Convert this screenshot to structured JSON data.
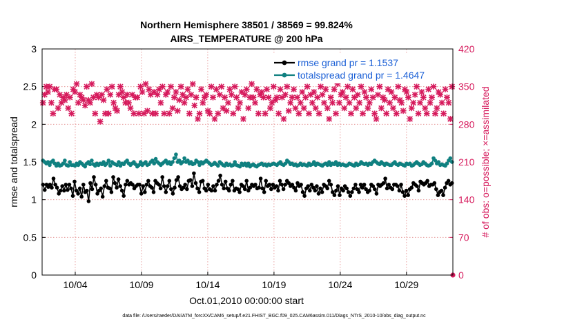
{
  "chart_data": {
    "type": "line",
    "title_line1": "Northern Hemisphere 38501 / 38569 = 99.824%",
    "title_line2": "AIRS_TEMPERATURE @ 200 hPa",
    "xlabel": "Oct.01,2010 00:00:00 start",
    "ylabel_left": "rmse and totalspread",
    "ylabel_right": "# of obs: o=possible; ×=assimilated",
    "footer": "data file: /Users/raeder/DAI/ATM_forcXX/CAM6_setup/f.e21.FHIST_BGC.f09_025.CAM6assim.011/Diags_NTrS_2010-10/obs_diag_output.nc",
    "x_range": [
      1.5,
      32.5
    ],
    "y_left": {
      "range": [
        0,
        3
      ],
      "ticks": [
        "0",
        "0.5",
        "1",
        "1.5",
        "2",
        "2.5",
        "3"
      ],
      "tick_values": [
        0,
        0.5,
        1,
        1.5,
        2,
        2.5,
        3
      ]
    },
    "y_right": {
      "range": [
        0,
        420
      ],
      "ticks": [
        "0",
        "70",
        "140",
        "210",
        "280",
        "350",
        "420"
      ],
      "tick_values": [
        0,
        70,
        140,
        210,
        280,
        350,
        420
      ]
    },
    "x_ticks": [
      {
        "x": 4,
        "label": "10/04"
      },
      {
        "x": 9,
        "label": "10/09"
      },
      {
        "x": 14,
        "label": "10/14"
      },
      {
        "x": 19,
        "label": "10/19"
      },
      {
        "x": 24,
        "label": "10/24"
      },
      {
        "x": 29,
        "label": "10/29"
      }
    ],
    "colors": {
      "rmse": "#000000",
      "spread": "#0f8080",
      "obs": "#d61a5c",
      "axis_right": "#d61a5c",
      "legend_text": "#1a5fd6",
      "grid": "#e38a8a"
    },
    "series": [
      {
        "name": "rmse grand pr = 1.1537",
        "key": "rmse",
        "axis": "left",
        "values": [
          1.2,
          1.13,
          1.2,
          1.17,
          1.2,
          1.16,
          1.28,
          1.2,
          1.16,
          1.08,
          1.12,
          1.18,
          1.12,
          1.2,
          1.13,
          1.2,
          1.15,
          1.05,
          1.24,
          1.12,
          1.08,
          1.15,
          1.04,
          1.2,
          1.1,
          1.12,
          0.98,
          1.22,
          1.14,
          1.3,
          1.2,
          1.08,
          1.12,
          1.15,
          1.04,
          1.18,
          1.25,
          1.16,
          1.15,
          1.1,
          1.3,
          1.22,
          1.16,
          1.27,
          1.18,
          1.12,
          1.05,
          1.2,
          1.25,
          1.2,
          1.22,
          1.2,
          1.15,
          1.18,
          1.2,
          1.2,
          1.08,
          1.18,
          1.1,
          1.2,
          1.25,
          1.18,
          1.16,
          1.1,
          1.25,
          1.22,
          1.2,
          1.15,
          1.3,
          1.18,
          1.1,
          1.18,
          1.25,
          1.14,
          1.08,
          1.16,
          1.26,
          1.3,
          1.18,
          1.14,
          1.16,
          1.2,
          1.14,
          1.25,
          1.26,
          1.18,
          1.35,
          1.22,
          1.15,
          1.1,
          1.24,
          1.25,
          1.15,
          1.12,
          1.2,
          1.14,
          1.12,
          1.18,
          1.12,
          1.2,
          1.25,
          1.32,
          1.2,
          1.15,
          1.24,
          1.15,
          1.12,
          1.2,
          1.25,
          1.12,
          1.15,
          1.14,
          1.1,
          1.2,
          1.18,
          1.14,
          1.25,
          1.12,
          1.16,
          1.2,
          1.18,
          1.2,
          1.15,
          1.16,
          1.28,
          1.15,
          1.1,
          1.25,
          1.18,
          1.2,
          1.14,
          1.2,
          1.16,
          1.18,
          1.12,
          1.25,
          1.2,
          1.14,
          1.2,
          1.25,
          1.22,
          1.18,
          1.2,
          1.16,
          1.12,
          1.22,
          1.18,
          1.2,
          1.1,
          1.05,
          1.15,
          1.18,
          1.12,
          1.2,
          1.16,
          1.12,
          1.18,
          1.08,
          1.15,
          1.1,
          1.2,
          1.18,
          1.15,
          1.25,
          1.2,
          1.1,
          1.06,
          1.12,
          1.18,
          1.06,
          1.15,
          1.12,
          1.18,
          1.15,
          1.1,
          1.05,
          1.1,
          1.15,
          1.2,
          1.14,
          1.1,
          1.2,
          1.16,
          1.2,
          1.14,
          1.1,
          1.12,
          1.2,
          1.18,
          1.14,
          1.08,
          1.2,
          1.18,
          1.2,
          1.22,
          1.28,
          1.15,
          1.2,
          1.16,
          1.14,
          1.2,
          1.2,
          1.18,
          1.12,
          1.2,
          1.1,
          1.05,
          1.12,
          1.06,
          1.14,
          1.16,
          1.22,
          1.2,
          1.18,
          1.12,
          1.24,
          1.22,
          1.2,
          1.22,
          1.25,
          1.18,
          1.2,
          1.2,
          1.22,
          1.14,
          1.06,
          1.1,
          1.12,
          1.06,
          1.16,
          1.22,
          1.25,
          1.2,
          1.22
        ]
      },
      {
        "name": "totalspread grand pr = 1.4647",
        "key": "spread",
        "axis": "left",
        "values": [
          1.52,
          1.5,
          1.48,
          1.5,
          1.46,
          1.5,
          1.52,
          1.48,
          1.45,
          1.48,
          1.45,
          1.46,
          1.48,
          1.52,
          1.46,
          1.45,
          1.5,
          1.46,
          1.46,
          1.45,
          1.48,
          1.46,
          1.5,
          1.48,
          1.46,
          1.44,
          1.48,
          1.5,
          1.47,
          1.52,
          1.47,
          1.45,
          1.48,
          1.46,
          1.48,
          1.47,
          1.5,
          1.46,
          1.48,
          1.52,
          1.45,
          1.5,
          1.48,
          1.47,
          1.46,
          1.5,
          1.45,
          1.48,
          1.47,
          1.5,
          1.52,
          1.48,
          1.46,
          1.48,
          1.5,
          1.47,
          1.44,
          1.46,
          1.5,
          1.46,
          1.48,
          1.5,
          1.46,
          1.47,
          1.5,
          1.52,
          1.48,
          1.54,
          1.5,
          1.48,
          1.46,
          1.48,
          1.5,
          1.52,
          1.48,
          1.5,
          1.47,
          1.5,
          1.55,
          1.6,
          1.5,
          1.52,
          1.48,
          1.5,
          1.55,
          1.5,
          1.52,
          1.48,
          1.5,
          1.47,
          1.48,
          1.52,
          1.5,
          1.46,
          1.5,
          1.48,
          1.5,
          1.52,
          1.5,
          1.48,
          1.46,
          1.47,
          1.49,
          1.47,
          1.45,
          1.5,
          1.48,
          1.46,
          1.45,
          1.48,
          1.46,
          1.47,
          1.45,
          1.46,
          1.5,
          1.46,
          1.45,
          1.44,
          1.48,
          1.46,
          1.48,
          1.45,
          1.48,
          1.44,
          1.46,
          1.47,
          1.45,
          1.44,
          1.46,
          1.47,
          1.48,
          1.46,
          1.47,
          1.45,
          1.47,
          1.46,
          1.47,
          1.48,
          1.47,
          1.46,
          1.48,
          1.5,
          1.47,
          1.46,
          1.48,
          1.52,
          1.5,
          1.47,
          1.48,
          1.46,
          1.47,
          1.45,
          1.46,
          1.48,
          1.46,
          1.47,
          1.46,
          1.45,
          1.48,
          1.46,
          1.47,
          1.5,
          1.46,
          1.48,
          1.47,
          1.46,
          1.45,
          1.47,
          1.48,
          1.46,
          1.5,
          1.46,
          1.48,
          1.47,
          1.5,
          1.46,
          1.48,
          1.46,
          1.47,
          1.46,
          1.45,
          1.46,
          1.48,
          1.47,
          1.46,
          1.45,
          1.48,
          1.46,
          1.47,
          1.5,
          1.48,
          1.47,
          1.48,
          1.46,
          1.48,
          1.47,
          1.5,
          1.52,
          1.5,
          1.48,
          1.47,
          1.5,
          1.48,
          1.46,
          1.48,
          1.47,
          1.46,
          1.46,
          1.48,
          1.5,
          1.47,
          1.46,
          1.48,
          1.47,
          1.46,
          1.45,
          1.48,
          1.47,
          1.48,
          1.45,
          1.46,
          1.48,
          1.5,
          1.48,
          1.46,
          1.47,
          1.5,
          1.48,
          1.46,
          1.45,
          1.46,
          1.48,
          1.55,
          1.52,
          1.48,
          1.5,
          1.46,
          1.47,
          1.46,
          1.45,
          1.48,
          1.52,
          1.55,
          1.5
        ]
      },
      {
        "name": "# of obs (assimilated)",
        "key": "obs",
        "axis": "right",
        "values": [
          320,
          335,
          350,
          340,
          350,
          320,
          300,
          345,
          345,
          310,
          335,
          320,
          330,
          325,
          335,
          310,
          330,
          300,
          345,
          340,
          355,
          320,
          335,
          330,
          325,
          315,
          350,
          325,
          320,
          355,
          330,
          300,
          335,
          330,
          285,
          335,
          325,
          300,
          345,
          300,
          335,
          350,
          320,
          310,
          305,
          335,
          350,
          340,
          330,
          320,
          335,
          320,
          310,
          335,
          300,
          330,
          330,
          300,
          350,
          340,
          300,
          355,
          305,
          345,
          335,
          300,
          340,
          300,
          335,
          345,
          320,
          350,
          300,
          335,
          340,
          300,
          350,
          310,
          330,
          340,
          305,
          325,
          350,
          335,
          320,
          330,
          345,
          300,
          335,
          355,
          315,
          330,
          290,
          300,
          345,
          320,
          330,
          335,
          305,
          300,
          350,
          330,
          290,
          345,
          300,
          335,
          350,
          310,
          330,
          305,
          320,
          345,
          335,
          300,
          350,
          330,
          310,
          320,
          340,
          290,
          335,
          345,
          310,
          330,
          355,
          330,
          320,
          345,
          300,
          335,
          340,
          330,
          300,
          345,
          330,
          310,
          320,
          350,
          325,
          330,
          300,
          345,
          330,
          290,
          335,
          350,
          305,
          320,
          330,
          345,
          310,
          330,
          300,
          320,
          340,
          310,
          330,
          350,
          300,
          335,
          320,
          340,
          310,
          330,
          300,
          350,
          335,
          320,
          345,
          310,
          290,
          330,
          320,
          345,
          300,
          355,
          320,
          335,
          340,
          310,
          330,
          350,
          320,
          300,
          345,
          330,
          310,
          335,
          320,
          350,
          300,
          340,
          330,
          310,
          320,
          345,
          330,
          300,
          290,
          335,
          350,
          310,
          330,
          325,
          300,
          345,
          320,
          340,
          310,
          330,
          300,
          350,
          325,
          320,
          305,
          345,
          340,
          330,
          290,
          310,
          320,
          335,
          350,
          300,
          320,
          340,
          330,
          310,
          300,
          345,
          320,
          330,
          350,
          300,
          310,
          340,
          335,
          320,
          300,
          345,
          330,
          320,
          290,
          350
        ]
      }
    ],
    "legend": [
      {
        "label": "rmse grand pr = 1.1537",
        "key": "rmse"
      },
      {
        "label": "totalspread grand pr = 1.4647",
        "key": "spread"
      }
    ],
    "legend_position": "top-right"
  }
}
